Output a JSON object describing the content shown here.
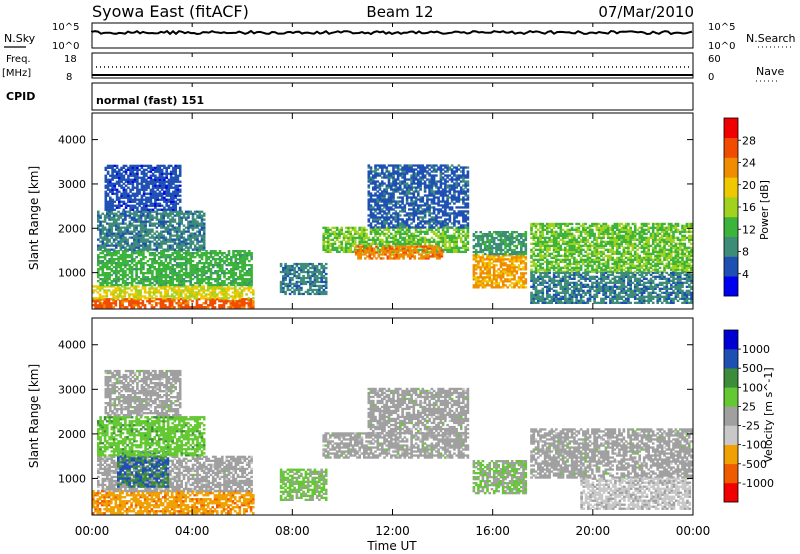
{
  "header": {
    "title": "Syowa East (fitACF)",
    "beam": "Beam 12",
    "date": "07/Mar/2010"
  },
  "param_panel": {
    "nsky_label": "N.Sky",
    "nsky_top": "10^5",
    "nsky_bottom": "10^0",
    "nsearch_label": "N.Search",
    "nsearch_top": "10^5",
    "nsearch_bottom": "10^0",
    "freq_label": "Freq.",
    "freq_unit": "[MHz]",
    "freq_top": "18",
    "freq_bottom": "8",
    "nave_label": "Nave",
    "nave_top": "60",
    "nave_bottom": "0",
    "cpid_label": "CPID",
    "cpid_text": "normal (fast) 151"
  },
  "x_axis": {
    "label": "Time UT",
    "ticks": [
      "00:00",
      "04:00",
      "08:00",
      "12:00",
      "16:00",
      "20:00",
      "00:00"
    ]
  },
  "colors": {
    "power": [
      "#0000f0",
      "#1e50b4",
      "#3c8c78",
      "#3cb43c",
      "#a0d21e",
      "#f0c800",
      "#f08c00",
      "#f04b00",
      "#f00000"
    ],
    "velocity": [
      "#f00000",
      "#f05a00",
      "#f0a000",
      "#c8c8c8",
      "#a0a0a0",
      "#64c832",
      "#3c8c3c",
      "#1e50b4",
      "#0000d2"
    ]
  },
  "chart_data": [
    {
      "type": "heatmap",
      "name": "power",
      "ylabel": "Slant Range [km]",
      "xlabel": "Time UT",
      "x": [
        "00:00",
        "04:00",
        "08:00",
        "12:00",
        "16:00",
        "20:00",
        "00:00"
      ],
      "yticks": [
        "1000",
        "2000",
        "3000",
        "4000"
      ],
      "ylim": [
        180,
        4600
      ],
      "colorbar": {
        "label": "Power [dB]",
        "ticks": [
          "4",
          "8",
          "12",
          "16",
          "20",
          "24",
          "28"
        ],
        "range": [
          0,
          32
        ]
      },
      "regions": [
        {
          "t0": 0.0,
          "t1": 6.4,
          "r0": 200,
          "r1": 400,
          "value": 26
        },
        {
          "t0": 0.0,
          "t1": 6.4,
          "r0": 400,
          "r1": 700,
          "value": 18
        },
        {
          "t0": 0.2,
          "t1": 6.4,
          "r0": 700,
          "r1": 1500,
          "value": 12
        },
        {
          "t0": 0.2,
          "t1": 4.5,
          "r0": 1500,
          "r1": 2400,
          "value": 8
        },
        {
          "t0": 0.5,
          "t1": 3.5,
          "r0": 2400,
          "r1": 3400,
          "value": 5
        },
        {
          "t0": 7.5,
          "t1": 9.3,
          "r0": 500,
          "r1": 1200,
          "value": 8
        },
        {
          "t0": 9.2,
          "t1": 15.0,
          "r0": 1450,
          "r1": 2000,
          "value": 14
        },
        {
          "t0": 10.5,
          "t1": 14.0,
          "r0": 1300,
          "r1": 1600,
          "value": 24
        },
        {
          "t0": 11.0,
          "t1": 15.0,
          "r0": 2000,
          "r1": 3400,
          "value": 6
        },
        {
          "t0": 15.2,
          "t1": 17.3,
          "r0": 650,
          "r1": 1400,
          "value": 22
        },
        {
          "t0": 15.2,
          "t1": 17.3,
          "r0": 1400,
          "r1": 1900,
          "value": 10
        },
        {
          "t0": 17.5,
          "t1": 23.9,
          "r0": 1000,
          "r1": 2100,
          "value": 14
        },
        {
          "t0": 17.5,
          "t1": 23.9,
          "r0": 300,
          "r1": 1000,
          "value": 8
        }
      ]
    },
    {
      "type": "heatmap",
      "name": "velocity",
      "ylabel": "Slant Range [km]",
      "xlabel": "Time UT",
      "x": [
        "00:00",
        "04:00",
        "08:00",
        "12:00",
        "16:00",
        "20:00",
        "00:00"
      ],
      "yticks": [
        "1000",
        "2000",
        "3000",
        "4000"
      ],
      "ylim": [
        180,
        4600
      ],
      "colorbar": {
        "label": "Velocity [m s^-1]",
        "ticks": [
          "1000",
          "500",
          "100",
          "25",
          "-25",
          "-100",
          "-500",
          "-1000"
        ],
        "range": [
          -1250,
          1250
        ]
      },
      "regions": [
        {
          "t0": 0.0,
          "t1": 6.4,
          "r0": 200,
          "r1": 700,
          "value": -600
        },
        {
          "t0": 0.2,
          "t1": 6.4,
          "r0": 700,
          "r1": 1500,
          "value": -10
        },
        {
          "t0": 1.0,
          "t1": 3.0,
          "r0": 800,
          "r1": 1600,
          "value": 700
        },
        {
          "t0": 0.2,
          "t1": 4.5,
          "r0": 1500,
          "r1": 2400,
          "value": 300
        },
        {
          "t0": 0.5,
          "t1": 3.5,
          "r0": 2400,
          "r1": 3400,
          "value": 0
        },
        {
          "t0": 7.5,
          "t1": 9.3,
          "r0": 500,
          "r1": 1200,
          "value": 200
        },
        {
          "t0": 9.2,
          "t1": 15.0,
          "r0": 1450,
          "r1": 2000,
          "value": 0
        },
        {
          "t0": 11.0,
          "t1": 15.0,
          "r0": 2000,
          "r1": 3000,
          "value": 0
        },
        {
          "t0": 15.2,
          "t1": 17.3,
          "r0": 650,
          "r1": 1400,
          "value": 150
        },
        {
          "t0": 17.5,
          "t1": 23.9,
          "r0": 1000,
          "r1": 2100,
          "value": 0
        },
        {
          "t0": 19.5,
          "t1": 23.9,
          "r0": 300,
          "r1": 1000,
          "value": -200
        }
      ]
    }
  ]
}
